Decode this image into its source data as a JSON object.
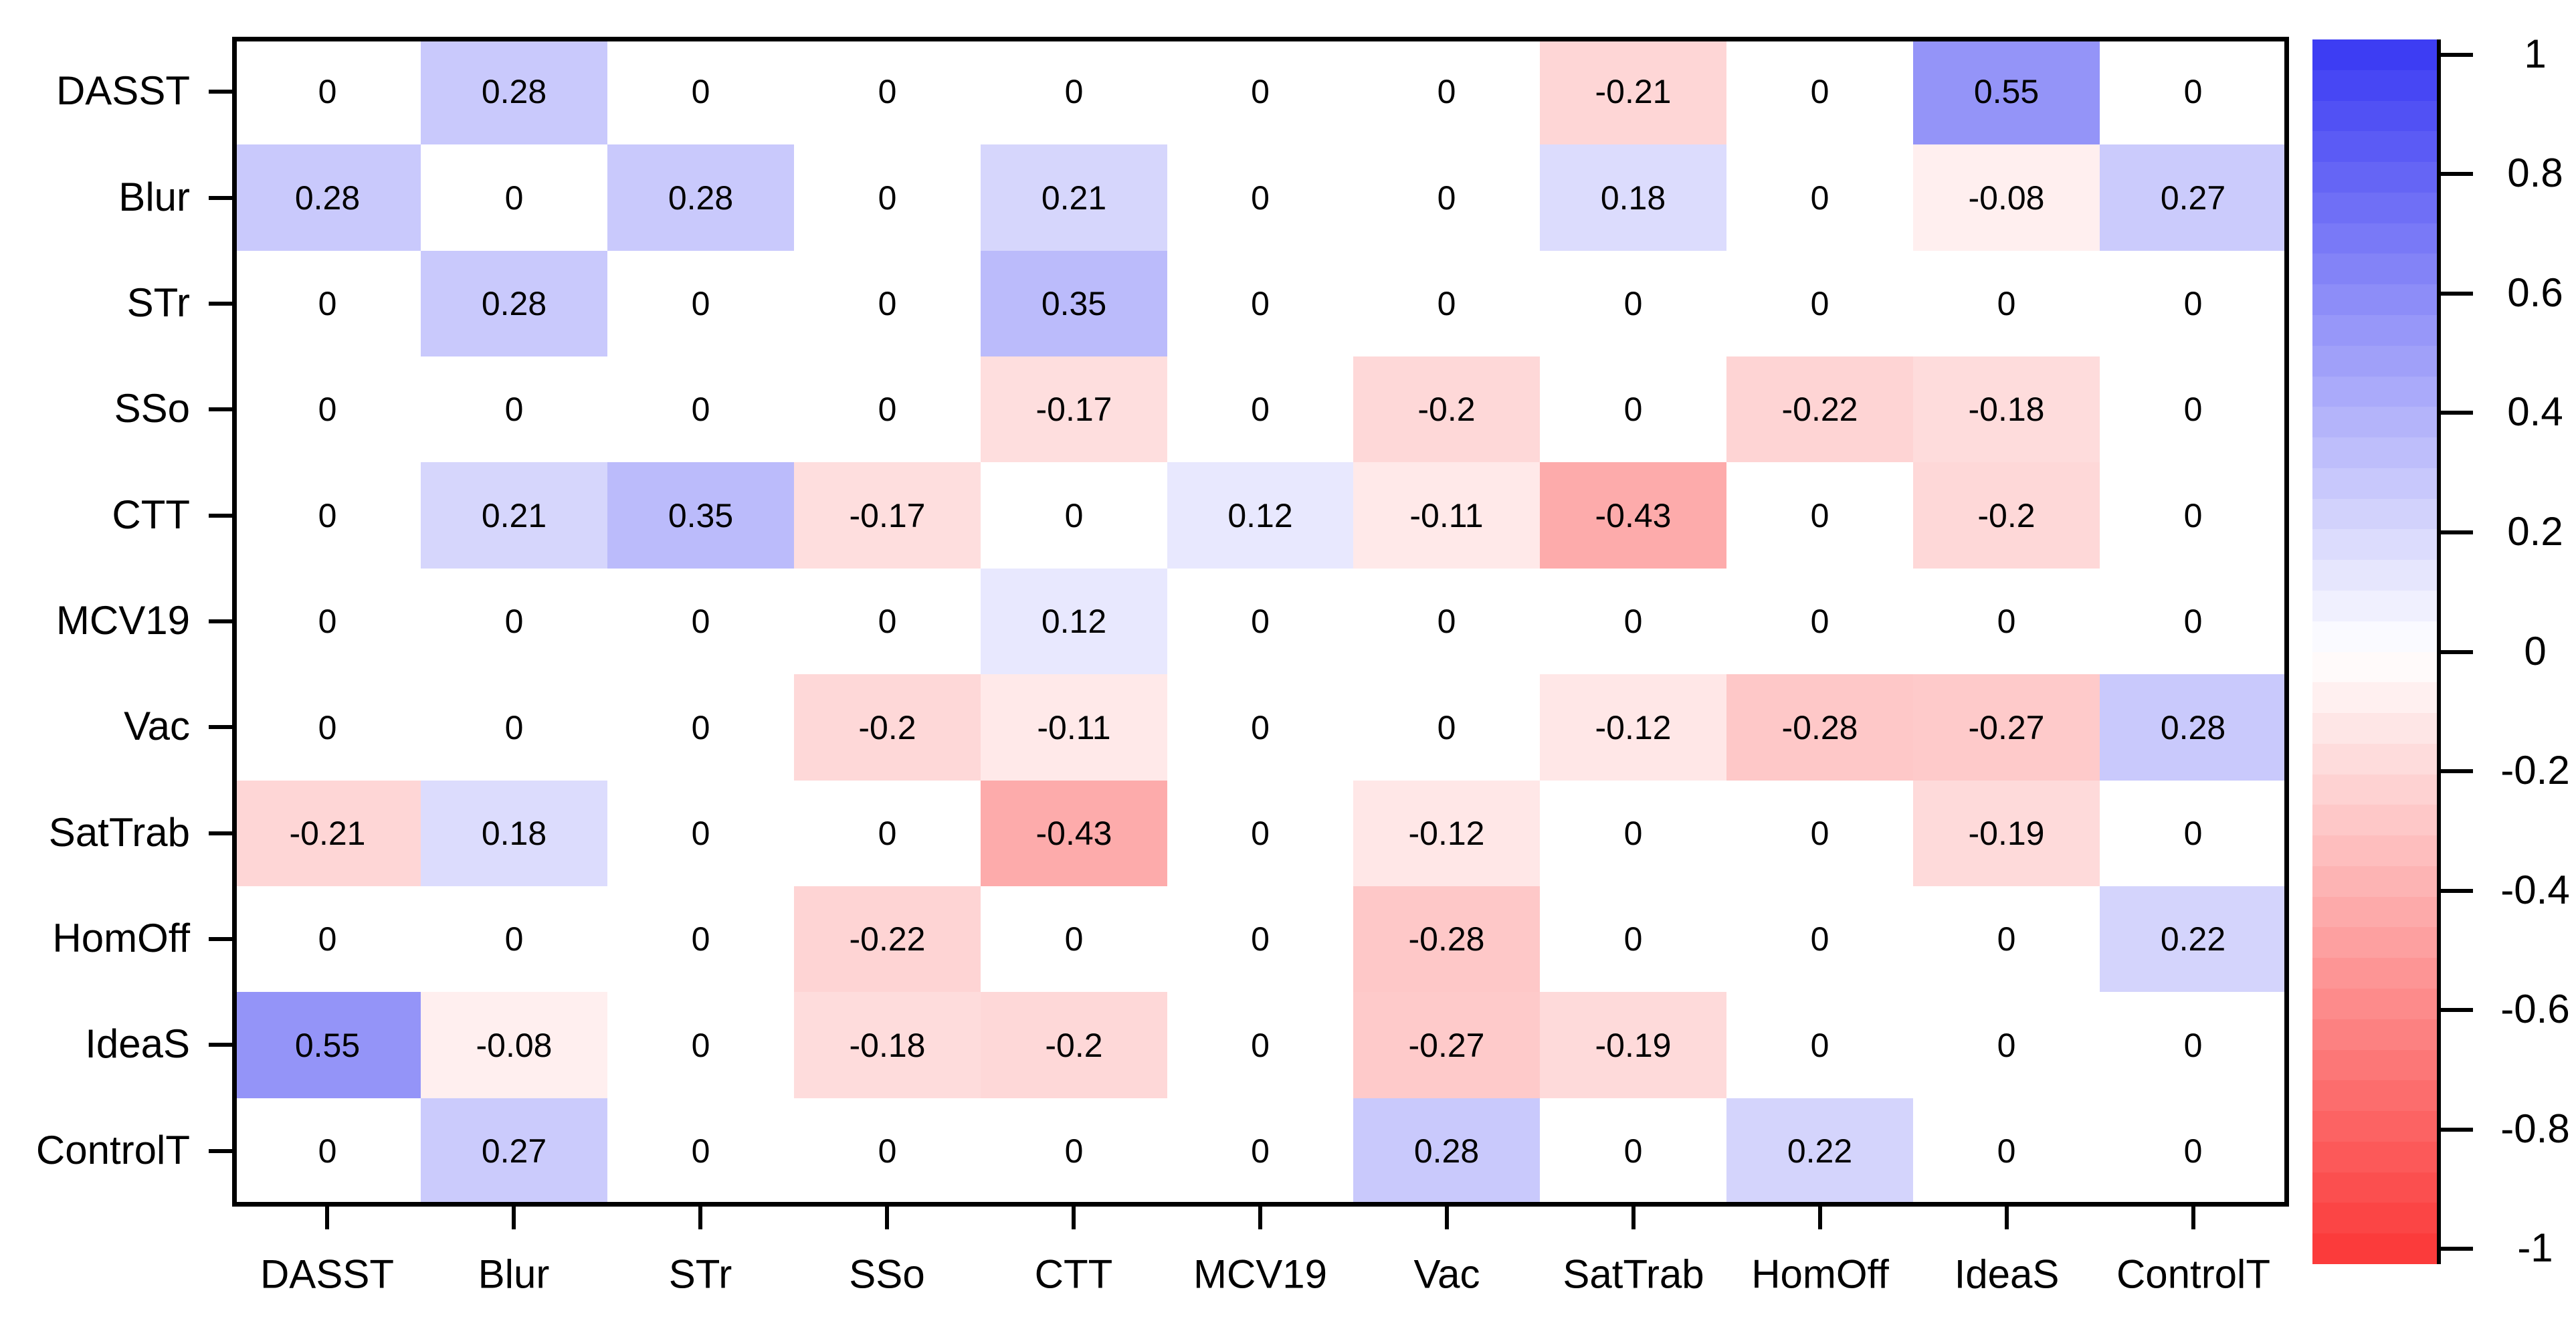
{
  "figure": {
    "background": "#ffffff",
    "text_color": "#000000"
  },
  "chart_data": {
    "type": "heatmap",
    "title": "",
    "xlabel": "",
    "ylabel": "",
    "grid": false,
    "legend_position": "right-colorbar",
    "variables": [
      "DASST",
      "Blur",
      "STr",
      "SSo",
      "CTT",
      "MCV19",
      "Vac",
      "SatTrab",
      "HomOff",
      "IdeaS",
      "ControlT"
    ],
    "x_categories": [
      "DASST",
      "Blur",
      "STr",
      "SSo",
      "CTT",
      "MCV19",
      "Vac",
      "SatTrab",
      "HomOff",
      "IdeaS",
      "ControlT"
    ],
    "y_categories": [
      "DASST",
      "Blur",
      "STr",
      "SSo",
      "CTT",
      "MCV19",
      "Vac",
      "SatTrab",
      "HomOff",
      "IdeaS",
      "ControlT"
    ],
    "matrix": [
      [
        0,
        0.28,
        0,
        0,
        0,
        0,
        0,
        -0.21,
        0,
        0.55,
        0
      ],
      [
        0.28,
        0,
        0.28,
        0,
        0.21,
        0,
        0,
        0.18,
        0,
        -0.08,
        0.27
      ],
      [
        0,
        0.28,
        0,
        0,
        0.35,
        0,
        0,
        0,
        0,
        0,
        0
      ],
      [
        0,
        0,
        0,
        0,
        -0.17,
        0,
        -0.2,
        0,
        -0.22,
        -0.18,
        0
      ],
      [
        0,
        0.21,
        0.35,
        -0.17,
        0,
        0.12,
        -0.11,
        -0.43,
        0,
        -0.2,
        0
      ],
      [
        0,
        0,
        0,
        0,
        0.12,
        0,
        0,
        0,
        0,
        0,
        0
      ],
      [
        0,
        0,
        0,
        -0.2,
        -0.11,
        0,
        0,
        -0.12,
        -0.28,
        -0.27,
        0.28
      ],
      [
        -0.21,
        0.18,
        0,
        0,
        -0.43,
        0,
        -0.12,
        0,
        0,
        -0.19,
        0
      ],
      [
        0,
        0,
        0,
        -0.22,
        0,
        0,
        -0.28,
        0,
        0,
        0,
        0.22
      ],
      [
        0.55,
        -0.08,
        0,
        -0.18,
        -0.2,
        0,
        -0.27,
        -0.19,
        0,
        0,
        0
      ],
      [
        0,
        0.27,
        0,
        0,
        0,
        0,
        0.28,
        0,
        0.22,
        0,
        0
      ]
    ],
    "cell_text_color": "#000000",
    "axis_color": "#000000",
    "colorbar": {
      "position": "right",
      "range": [
        -1,
        1
      ],
      "bands": 40,
      "tick_values": [
        1,
        0.8,
        0.6,
        0.4,
        0.2,
        0,
        -0.2,
        -0.4,
        -0.6,
        -0.8,
        -1
      ],
      "tick_labels": [
        "1",
        "0.8",
        "0.6",
        "0.4",
        "0.2",
        "0",
        "-0.2",
        "-0.4",
        "-0.6",
        "-0.8",
        "-1"
      ],
      "max_color": "#3d3df3",
      "mid_color": "#ffffff",
      "min_color": "#fb3b3b"
    }
  }
}
